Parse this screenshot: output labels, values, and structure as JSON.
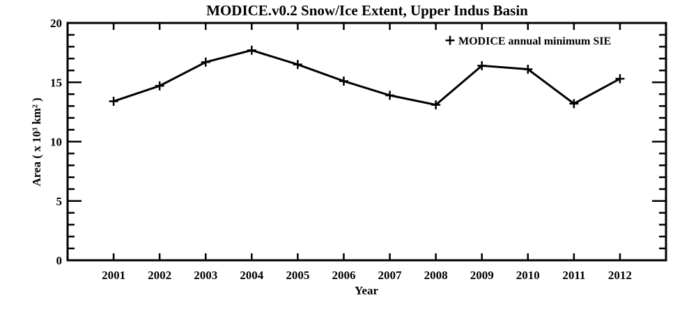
{
  "page": {
    "background": "#ffffff"
  },
  "colors": {
    "foreground": "#000000",
    "line": "#000000",
    "background": "#ffffff"
  },
  "chart_data": {
    "type": "line",
    "title": "MODICE.v0.2 Snow/Ice Extent, Upper Indus Basin",
    "xlabel": "Year",
    "ylabel": "Area ( x 10³ km² )",
    "x": [
      2001,
      2002,
      2003,
      2004,
      2005,
      2006,
      2007,
      2008,
      2009,
      2010,
      2011,
      2012
    ],
    "series": [
      {
        "name": "MODICE annual minimum SIE",
        "marker": "+",
        "color": "#000000",
        "values": [
          13.4,
          14.7,
          16.7,
          17.7,
          16.5,
          15.1,
          13.9,
          13.1,
          16.4,
          16.1,
          13.2,
          15.3
        ]
      }
    ],
    "xlim": [
      2000,
      2013
    ],
    "ylim": [
      0,
      20
    ],
    "xticks": [
      2001,
      2002,
      2003,
      2004,
      2005,
      2006,
      2007,
      2008,
      2009,
      2010,
      2011,
      2012
    ],
    "yticks_major": [
      0,
      5,
      10,
      15,
      20
    ],
    "y_minor_step": 1,
    "grid": false,
    "legend_position": "top-right",
    "legend_symbol": "+"
  }
}
